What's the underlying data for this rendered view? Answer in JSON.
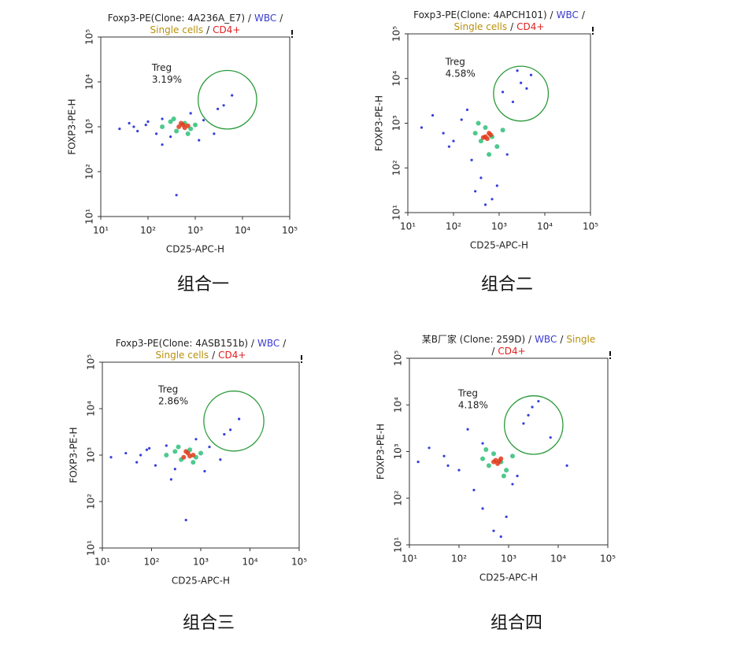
{
  "chart_data": [
    {
      "type": "scatter",
      "title_lines": [
        [
          {
            "text": "Foxp3-PE(Clone: 4A236A_E7) /",
            "color": "#222222"
          },
          {
            "text": "WBC",
            "color": "#3a3ad0"
          },
          {
            "text": "/",
            "color": "#222222"
          }
        ],
        [
          {
            "text": "Single cells",
            "color": "#b8900a"
          },
          {
            "text": "/",
            "color": "#222222"
          },
          {
            "text": "CD4+",
            "color": "#e02020"
          }
        ]
      ],
      "xlabel": "CD25-APC-H",
      "ylabel": "FOXP3-PE-H",
      "caption": "组合一",
      "log_scale": true,
      "xlim": [
        10,
        100000
      ],
      "ylim": [
        10,
        100000
      ],
      "xticks": [
        {
          "value": 10,
          "label": "10¹"
        },
        {
          "value": 100,
          "label": "10²"
        },
        {
          "value": 1000,
          "label": "10³"
        },
        {
          "value": 10000,
          "label": "10⁴"
        },
        {
          "value": 100000,
          "label": "10⁵"
        }
      ],
      "yticks": [
        {
          "value": 10,
          "label": "10¹"
        },
        {
          "value": 100,
          "label": "10²"
        },
        {
          "value": 1000,
          "label": "10³"
        },
        {
          "value": 10000,
          "label": "10⁴"
        },
        {
          "value": 100000,
          "label": "10⁵"
        }
      ],
      "series": [
        {
          "color": "#1f2bd6",
          "x": [
            25,
            40,
            60,
            90,
            150,
            200,
            300,
            800,
            1500,
            2500,
            4000,
            6000,
            200,
            100,
            1200,
            3000,
            50,
            400
          ],
          "y": [
            900,
            1200,
            800,
            1100,
            700,
            1500,
            600,
            2000,
            1400,
            700,
            3000,
            5000,
            400,
            1300,
            500,
            2500,
            1000,
            30
          ]
        },
        {
          "color": "#2fbf7a",
          "x": [
            200,
            300,
            400,
            600,
            800,
            1000,
            350,
            700
          ],
          "y": [
            1000,
            1300,
            800,
            1200,
            900,
            1100,
            1500,
            700
          ]
        },
        {
          "color": "#e03a1a",
          "x": [
            450,
            550,
            600,
            500,
            700
          ],
          "y": [
            1000,
            1100,
            950,
            1200,
            1050
          ]
        }
      ],
      "gate": {
        "label": "Treg",
        "value": 3.19,
        "value_label": "3.19%",
        "x": 4800,
        "y": 4000,
        "radius_decades": 0.62,
        "color": "#2a9a3a"
      }
    },
    {
      "type": "scatter",
      "title_lines": [
        [
          {
            "text": "Foxp3-PE(Clone: 4APCH101) /",
            "color": "#222222"
          },
          {
            "text": "WBC",
            "color": "#3a3ad0"
          },
          {
            "text": "/",
            "color": "#222222"
          }
        ],
        [
          {
            "text": "Single cells",
            "color": "#b8900a"
          },
          {
            "text": "/",
            "color": "#222222"
          },
          {
            "text": "CD4+",
            "color": "#e02020"
          }
        ]
      ],
      "xlabel": "CD25-APC-H",
      "ylabel": "FOXP3-PE-H",
      "caption": "组合二",
      "log_scale": true,
      "xlim": [
        10,
        100000
      ],
      "ylim": [
        10,
        100000
      ],
      "xticks": [
        {
          "value": 10,
          "label": "10¹"
        },
        {
          "value": 100,
          "label": "10²"
        },
        {
          "value": 1000,
          "label": "10³"
        },
        {
          "value": 10000,
          "label": "10⁴"
        },
        {
          "value": 100000,
          "label": "10⁵"
        }
      ],
      "yticks": [
        {
          "value": 10,
          "label": "10¹"
        },
        {
          "value": 100,
          "label": "10²"
        },
        {
          "value": 1000,
          "label": "10³"
        },
        {
          "value": 10000,
          "label": "10⁴"
        },
        {
          "value": 100000,
          "label": "10⁵"
        }
      ],
      "series": [
        {
          "color": "#1f2bd6",
          "x": [
            20,
            35,
            60,
            100,
            150,
            250,
            400,
            900,
            1500,
            2000,
            3000,
            5000,
            700,
            300,
            200,
            500,
            1200,
            80,
            2500,
            4000
          ],
          "y": [
            800,
            1500,
            600,
            400,
            1200,
            150,
            60,
            40,
            200,
            3000,
            8000,
            12000,
            20,
            30,
            2000,
            15,
            5000,
            300,
            15000,
            6000
          ]
        },
        {
          "color": "#2fbf7a",
          "x": [
            300,
            400,
            500,
            700,
            900,
            1200,
            350,
            600
          ],
          "y": [
            600,
            400,
            800,
            500,
            300,
            700,
            1000,
            200
          ]
        },
        {
          "color": "#e03a1a",
          "x": [
            500,
            550,
            650,
            600,
            450
          ],
          "y": [
            500,
            450,
            550,
            600,
            480
          ]
        }
      ],
      "gate": {
        "label": "Treg",
        "value": 4.58,
        "value_label": "4.58%",
        "x": 3000,
        "y": 4600,
        "radius_decades": 0.6,
        "color": "#2a9a3a"
      }
    },
    {
      "type": "scatter",
      "title_lines": [
        [
          {
            "text": "Foxp3-PE(Clone: 4ASB151b) /",
            "color": "#222222"
          },
          {
            "text": "WBC",
            "color": "#3a3ad0"
          },
          {
            "text": "/",
            "color": "#222222"
          }
        ],
        [
          {
            "text": "Single cells",
            "color": "#b8900a"
          },
          {
            "text": "/",
            "color": "#222222"
          },
          {
            "text": "CD4+",
            "color": "#e02020"
          }
        ]
      ],
      "xlabel": "CD25-APC-H",
      "ylabel": "FOXP3-PE-H",
      "caption": "组合三",
      "log_scale": true,
      "xlim": [
        10,
        100000
      ],
      "ylim": [
        10,
        100000
      ],
      "xticks": [
        {
          "value": 10,
          "label": "10¹"
        },
        {
          "value": 100,
          "label": "10²"
        },
        {
          "value": 1000,
          "label": "10³"
        },
        {
          "value": 10000,
          "label": "10⁴"
        },
        {
          "value": 100000,
          "label": "10⁵"
        }
      ],
      "yticks": [
        {
          "value": 10,
          "label": "10¹"
        },
        {
          "value": 100,
          "label": "10²"
        },
        {
          "value": 1000,
          "label": "10³"
        },
        {
          "value": 10000,
          "label": "10⁴"
        },
        {
          "value": 100000,
          "label": "10⁵"
        }
      ],
      "series": [
        {
          "color": "#1f2bd6",
          "x": [
            15,
            30,
            50,
            80,
            120,
            200,
            300,
            800,
            1500,
            2500,
            4000,
            6000,
            250,
            90,
            1200,
            3000,
            60,
            500
          ],
          "y": [
            900,
            1100,
            700,
            1300,
            600,
            1600,
            500,
            2200,
            1500,
            800,
            3500,
            6000,
            300,
            1400,
            450,
            2800,
            1000,
            40
          ]
        },
        {
          "color": "#2fbf7a",
          "x": [
            200,
            300,
            400,
            600,
            800,
            1000,
            350,
            700
          ],
          "y": [
            1000,
            1200,
            800,
            1300,
            900,
            1100,
            1500,
            700
          ]
        },
        {
          "color": "#e03a1a",
          "x": [
            450,
            550,
            600,
            500,
            700
          ],
          "y": [
            900,
            1100,
            950,
            1200,
            1000
          ]
        }
      ],
      "gate": {
        "label": "Treg",
        "value": 2.86,
        "value_label": "2.86%",
        "x": 4700,
        "y": 5400,
        "radius_decades": 0.61,
        "color": "#2a9a3a"
      }
    },
    {
      "type": "scatter",
      "title_lines": [
        [
          {
            "text": "某B厂家 (Clone: 259D) /",
            "color": "#222222"
          },
          {
            "text": "WBC",
            "color": "#3a3ad0"
          },
          {
            "text": "/",
            "color": "#222222"
          },
          {
            "text": "Single",
            "color": "#b8900a"
          }
        ],
        [
          {
            "text": "/",
            "color": "#222222"
          },
          {
            "text": "CD4+",
            "color": "#e02020"
          }
        ]
      ],
      "xlabel": "CD25-APC-H",
      "ylabel": "FOXP3-PE-H",
      "caption": "组合四",
      "log_scale": true,
      "xlim": [
        10,
        100000
      ],
      "ylim": [
        10,
        100000
      ],
      "xticks": [
        {
          "value": 10,
          "label": "10¹"
        },
        {
          "value": 100,
          "label": "10²"
        },
        {
          "value": 1000,
          "label": "10³"
        },
        {
          "value": 10000,
          "label": "10⁴"
        },
        {
          "value": 100000,
          "label": "10⁵"
        }
      ],
      "yticks": [
        {
          "value": 10,
          "label": "10¹"
        },
        {
          "value": 100,
          "label": "10²"
        },
        {
          "value": 1000,
          "label": "10³"
        },
        {
          "value": 10000,
          "label": "10⁴"
        },
        {
          "value": 100000,
          "label": "10⁵"
        }
      ],
      "series": [
        {
          "color": "#1f2bd6",
          "x": [
            15,
            25,
            50,
            100,
            200,
            300,
            500,
            900,
            1500,
            2500,
            4000,
            7000,
            15000,
            700,
            300,
            150,
            1200,
            3000,
            60,
            2000
          ],
          "y": [
            600,
            1200,
            800,
            400,
            150,
            60,
            20,
            40,
            300,
            6000,
            12000,
            2000,
            500,
            15,
            1500,
            3000,
            200,
            9000,
            500,
            4000
          ]
        },
        {
          "color": "#2fbf7a",
          "x": [
            300,
            400,
            500,
            700,
            900,
            1200,
            350,
            800
          ],
          "y": [
            700,
            500,
            900,
            600,
            400,
            800,
            1100,
            300
          ]
        },
        {
          "color": "#e03a1a",
          "x": [
            500,
            600,
            700,
            550,
            650
          ],
          "y": [
            600,
            550,
            700,
            650,
            620
          ]
        }
      ],
      "gate": {
        "label": "Treg",
        "value": 4.18,
        "value_label": "4.18%",
        "x": 3200,
        "y": 3700,
        "radius_decades": 0.59,
        "color": "#2a9a3a"
      }
    }
  ]
}
